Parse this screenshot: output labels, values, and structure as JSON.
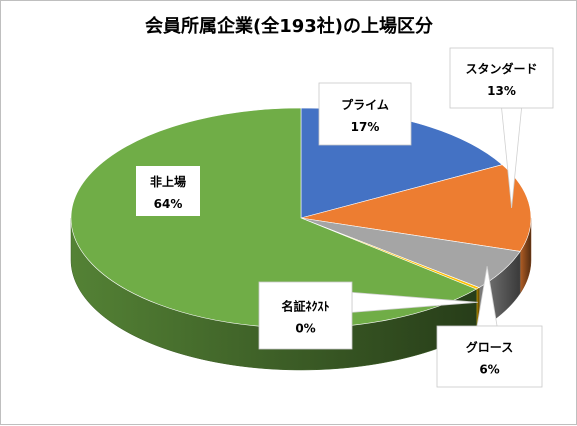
{
  "chart_data": {
    "type": "pie",
    "title": "会員所属企業(全193社)の上場区分",
    "slices": [
      {
        "name": "プライム",
        "value": 17,
        "label": "17%",
        "color": "#4472c4"
      },
      {
        "name": "スタンダード",
        "value": 13,
        "label": "13%",
        "color": "#ed7d31"
      },
      {
        "name": "グロース",
        "value": 6,
        "label": "6%",
        "color": "#a5a5a5"
      },
      {
        "name": "名証ﾈｸｽﾄ",
        "value": 0.3,
        "label": "0%",
        "color": "#ffc000"
      },
      {
        "name": "非上場",
        "value": 64,
        "label": "64%",
        "color": "#70ad47"
      }
    ],
    "start": "12 o'clock",
    "direction": "clockwise",
    "style": "3D pie with callout labels",
    "legend": "none"
  }
}
